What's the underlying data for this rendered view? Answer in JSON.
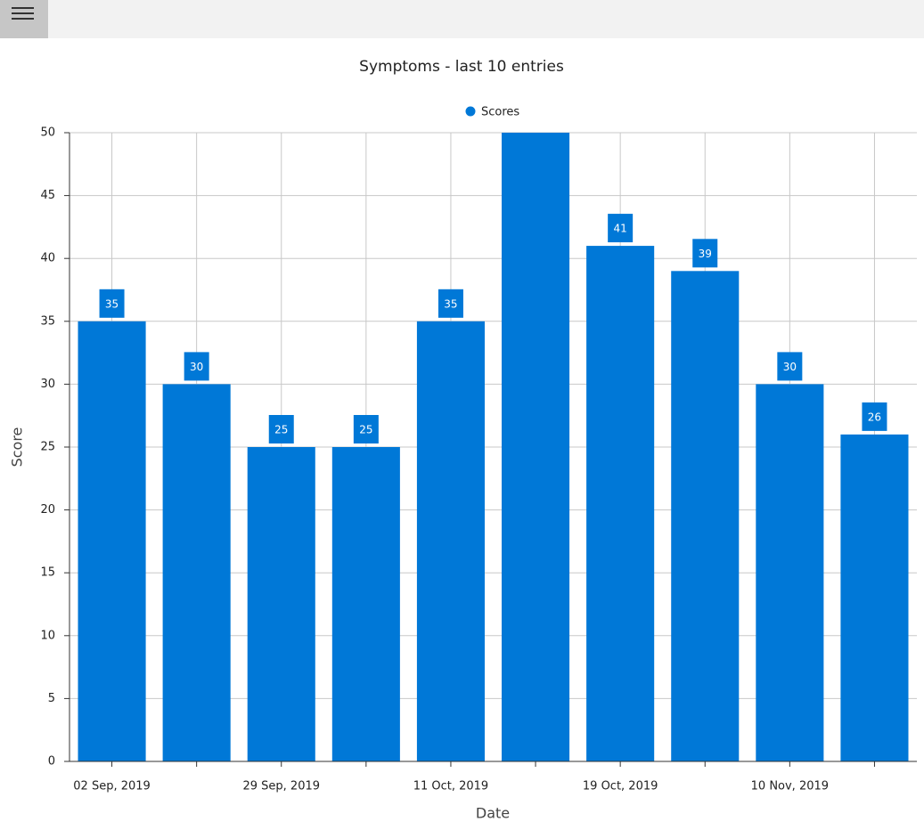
{
  "chart_data": {
    "type": "bar",
    "title": "Symptoms - last 10 entries",
    "x_label": "Date",
    "y_label": "Score",
    "categories": [
      "02 Sep, 2019",
      null,
      "29 Sep, 2019",
      null,
      "11 Oct, 2019",
      null,
      "19 Oct, 2019",
      null,
      "10 Nov, 2019",
      null
    ],
    "series": [
      {
        "name": "Scores",
        "color": "#0078d7",
        "values": [
          35,
          30,
          25,
          25,
          35,
          50,
          41,
          39,
          30,
          26
        ]
      }
    ],
    "ylim": [
      0,
      50
    ],
    "yticks": [
      0,
      5,
      10,
      15,
      20,
      25,
      30,
      35,
      40,
      45,
      50
    ],
    "grid": true,
    "legend": "top"
  }
}
